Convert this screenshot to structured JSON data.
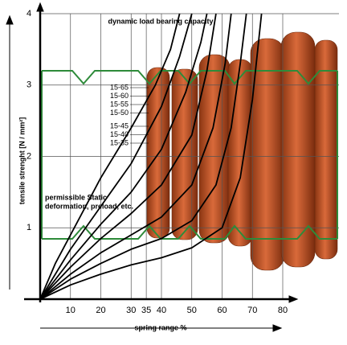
{
  "chart_data": {
    "type": "line",
    "annotations": [
      "dynamic load bearing capacity",
      "permissible Static",
      "deformation, preload, etc."
    ],
    "xlabel": "spring range %",
    "ylabel": "tensile strenght [N / mm²]",
    "xlim": [
      0,
      80
    ],
    "ylim": [
      0,
      4
    ],
    "xticks": [
      10,
      20,
      30,
      35,
      40,
      50,
      60,
      70,
      80
    ],
    "yticks": [
      1,
      2,
      3,
      4
    ],
    "grid": true,
    "color": "#000000",
    "series": [
      {
        "name": "15-65",
        "x": [
          0,
          5,
          10,
          20,
          30,
          38,
          43,
          46
        ],
        "values": [
          0,
          0.5,
          0.9,
          1.7,
          2.4,
          3.0,
          3.5,
          4.0
        ]
      },
      {
        "name": "15-60",
        "x": [
          0,
          10,
          20,
          30,
          40,
          46,
          50
        ],
        "values": [
          0,
          0.7,
          1.3,
          1.9,
          2.7,
          3.4,
          4.0
        ]
      },
      {
        "name": "15-55",
        "x": [
          0,
          10,
          20,
          30,
          40,
          48,
          53,
          55
        ],
        "values": [
          0,
          0.55,
          1.05,
          1.5,
          2.1,
          2.9,
          3.6,
          4.0
        ]
      },
      {
        "name": "15-50",
        "x": [
          0,
          10,
          20,
          30,
          40,
          50,
          55,
          58
        ],
        "values": [
          0,
          0.45,
          0.85,
          1.2,
          1.6,
          2.3,
          3.2,
          4.0
        ]
      },
      {
        "name": "15-45",
        "x": [
          0,
          10,
          20,
          30,
          40,
          50,
          57,
          61,
          63
        ],
        "values": [
          0,
          0.35,
          0.65,
          0.9,
          1.15,
          1.6,
          2.4,
          3.3,
          4.0
        ]
      },
      {
        "name": "15-40",
        "x": [
          0,
          10,
          20,
          30,
          40,
          50,
          58,
          63,
          66,
          68
        ],
        "values": [
          0,
          0.28,
          0.5,
          0.7,
          0.85,
          1.1,
          1.6,
          2.4,
          3.3,
          4.0
        ]
      },
      {
        "name": "15-35",
        "x": [
          0,
          10,
          20,
          30,
          40,
          50,
          60,
          66,
          70,
          73
        ],
        "values": [
          0,
          0.2,
          0.35,
          0.48,
          0.58,
          0.72,
          1.0,
          1.7,
          2.8,
          4.0
        ]
      }
    ]
  }
}
